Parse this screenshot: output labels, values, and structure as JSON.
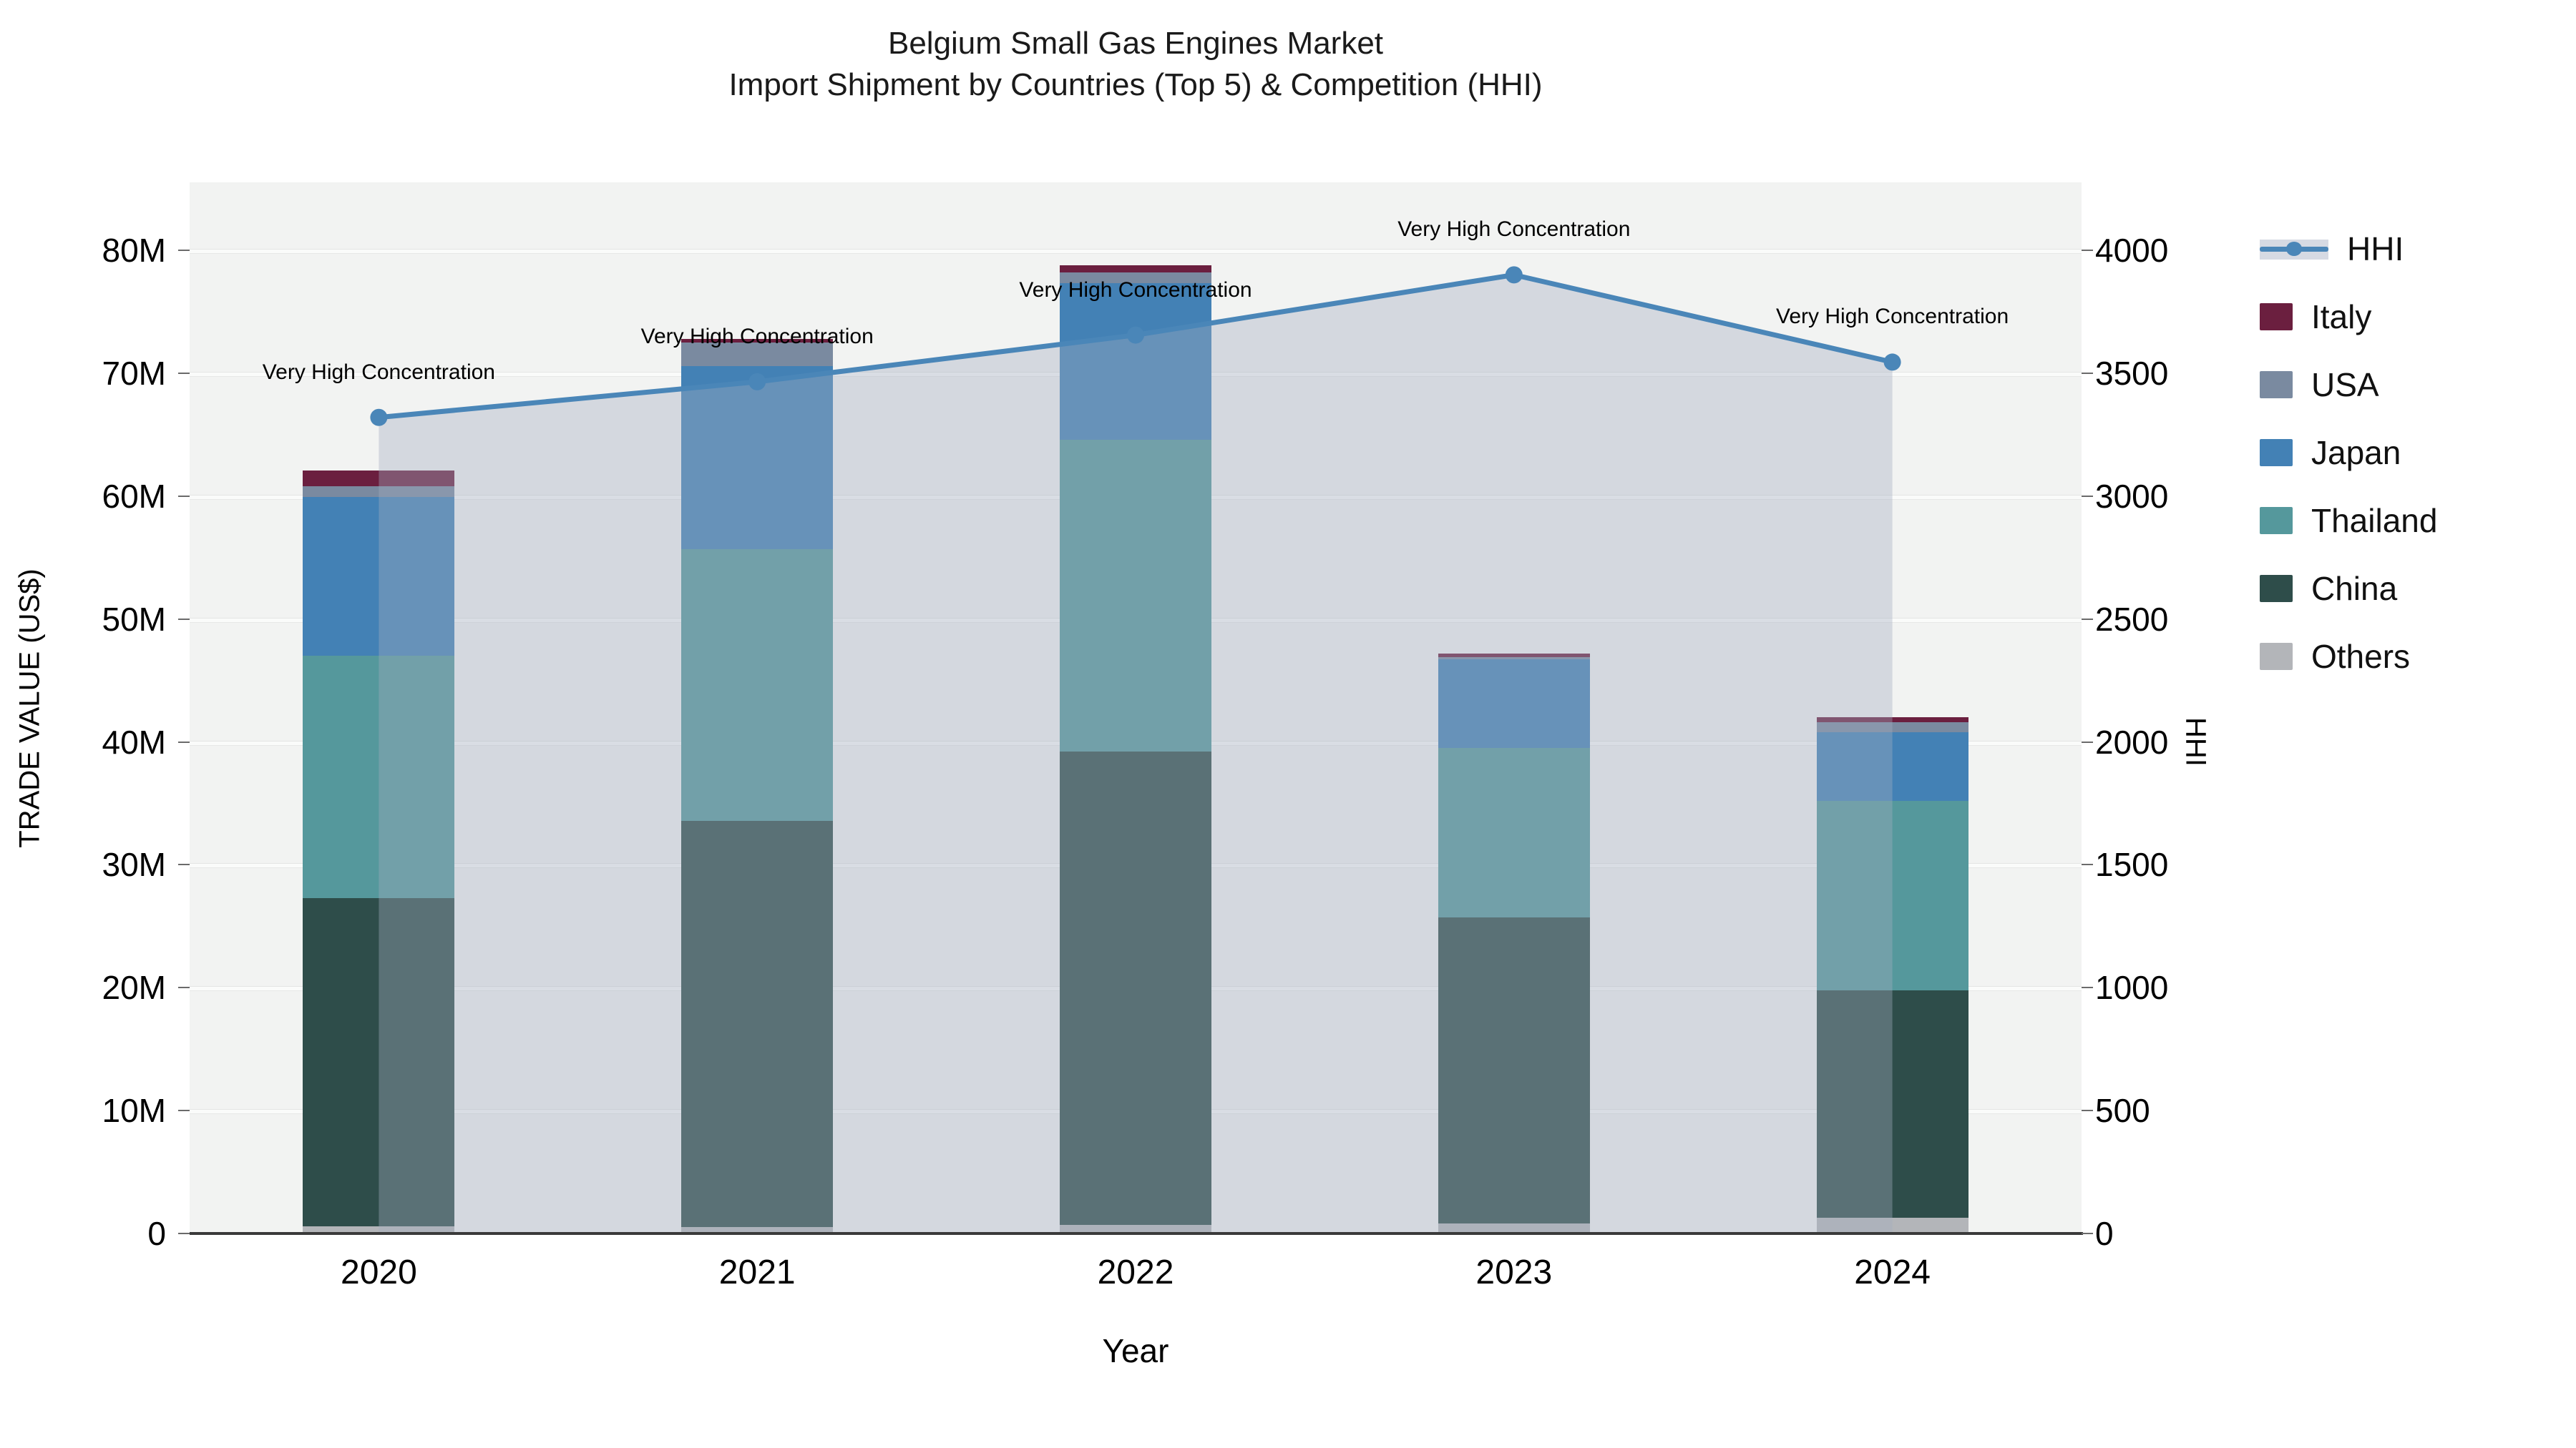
{
  "title": {
    "line1": "Belgium Small Gas Engines Market",
    "line2": "Import Shipment by Countries (Top 5) & Competition (HHI)"
  },
  "axes": {
    "y_left_label": "TRADE VALUE (US$)",
    "y_right_label": "HHI",
    "x_label": "Year",
    "y_left_ticks": [
      "0",
      "10M",
      "20M",
      "30M",
      "40M",
      "50M",
      "60M",
      "70M",
      "80M"
    ],
    "y_right_ticks": [
      "0",
      "500",
      "1000",
      "1500",
      "2000",
      "2500",
      "3000",
      "3500",
      "4000"
    ]
  },
  "annotation_text": "Very High Concentration",
  "colors": {
    "hhi_line": "#4a86b8",
    "hhi_fill": "rgba(163,174,192,0.38)",
    "italy": "#6b1f3f",
    "usa": "#7a8aa0",
    "japan": "#4381b5",
    "thailand": "#55989c",
    "china": "#2e4d4a",
    "others": "#b3b5b9",
    "plot_bg": "#f2f3f2"
  },
  "legend": {
    "items": [
      {
        "label": "HHI",
        "type": "line",
        "color_key": "hhi_line"
      },
      {
        "label": "Italy",
        "type": "box",
        "color_key": "italy"
      },
      {
        "label": "USA",
        "type": "box",
        "color_key": "usa"
      },
      {
        "label": "Japan",
        "type": "box",
        "color_key": "japan"
      },
      {
        "label": "Thailand",
        "type": "box",
        "color_key": "thailand"
      },
      {
        "label": "China",
        "type": "box",
        "color_key": "china"
      },
      {
        "label": "Others",
        "type": "box",
        "color_key": "others"
      }
    ]
  },
  "chart_data": {
    "type": "combo-stacked-bar-with-line",
    "title": "Belgium Small Gas Engines Market — Import Shipment by Countries (Top 5) & Competition (HHI)",
    "categories": [
      "2020",
      "2021",
      "2022",
      "2023",
      "2024"
    ],
    "bar_value_unit": "million US$ (left axis TRADE VALUE US$)",
    "stack_order_bottom_to_top": [
      "Others",
      "China",
      "Thailand",
      "Japan",
      "USA",
      "Italy"
    ],
    "series": [
      {
        "name": "Others",
        "color_key": "others",
        "values": [
          0.6,
          0.5,
          0.7,
          0.8,
          1.3
        ]
      },
      {
        "name": "China",
        "color_key": "china",
        "values": [
          26.7,
          33.1,
          38.5,
          24.9,
          18.5
        ]
      },
      {
        "name": "Thailand",
        "color_key": "thailand",
        "values": [
          19.7,
          22.1,
          25.4,
          13.8,
          15.4
        ]
      },
      {
        "name": "Japan",
        "color_key": "japan",
        "values": [
          12.9,
          14.9,
          12.7,
          7.2,
          5.6
        ]
      },
      {
        "name": "USA",
        "color_key": "usa",
        "values": [
          0.9,
          1.9,
          0.9,
          0.2,
          0.8
        ]
      },
      {
        "name": "Italy",
        "color_key": "italy",
        "values": [
          1.3,
          0.3,
          0.6,
          0.3,
          0.4
        ]
      }
    ],
    "bar_totals_musd": [
      62.1,
      72.8,
      78.8,
      47.2,
      42.0
    ],
    "line_series": {
      "name": "HHI",
      "axis": "right",
      "values": [
        3320,
        3465,
        3655,
        3900,
        3545
      ],
      "area_fill": true
    },
    "annotations": [
      "Very High Concentration",
      "Very High Concentration",
      "Very High Concentration",
      "Very High Concentration",
      "Very High Concentration"
    ],
    "ylim_left_musd": [
      0,
      80
    ],
    "ylim_right": [
      0,
      4000
    ],
    "grid": "horizontal-major",
    "legend_position": "right-outside-top"
  }
}
